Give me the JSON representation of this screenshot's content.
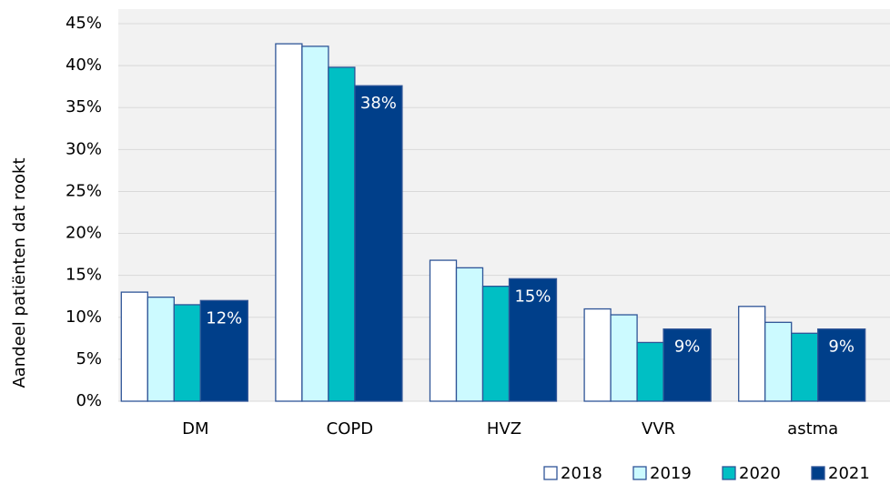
{
  "chart_data": {
    "type": "bar",
    "y_label": "Aandeel patiënten dat rookt",
    "categories": [
      "DM",
      "COPD",
      "HVZ",
      "VVR",
      "astma"
    ],
    "series": [
      {
        "name": "2018",
        "color": "#ffffff",
        "values": [
          13.0,
          42.6,
          16.8,
          11.0,
          11.3
        ]
      },
      {
        "name": "2019",
        "color": "#ccfaff",
        "values": [
          12.4,
          42.3,
          15.9,
          10.3,
          9.4
        ]
      },
      {
        "name": "2020",
        "color": "#00bfc4",
        "values": [
          11.5,
          39.8,
          13.7,
          7.0,
          8.1
        ]
      },
      {
        "name": "2021",
        "color": "#003f8a",
        "values": [
          12.0,
          37.6,
          14.6,
          8.6,
          8.6
        ],
        "value_labels": [
          "12%",
          "38%",
          "15%",
          "9%",
          "9%"
        ]
      }
    ],
    "ylim": [
      0,
      45
    ],
    "yticks": [
      {
        "value": 0,
        "label": "0%"
      },
      {
        "value": 5,
        "label": "5%"
      },
      {
        "value": 10,
        "label": "10%"
      },
      {
        "value": 15,
        "label": "15%"
      },
      {
        "value": 20,
        "label": "20%"
      },
      {
        "value": 25,
        "label": "25%"
      },
      {
        "value": 30,
        "label": "30%"
      },
      {
        "value": 35,
        "label": "35%"
      },
      {
        "value": 40,
        "label": "40%"
      },
      {
        "value": 45,
        "label": "45%"
      }
    ],
    "grid": true,
    "legend": "bottom-right"
  }
}
